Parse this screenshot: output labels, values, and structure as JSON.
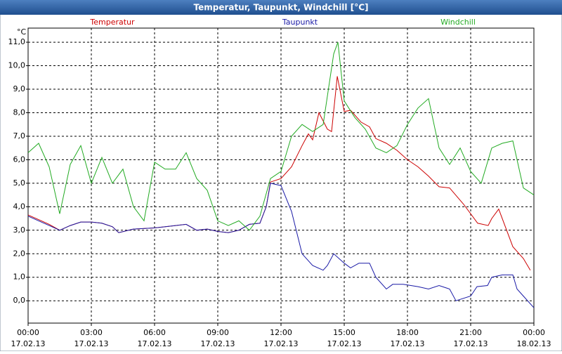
{
  "chart_data": {
    "type": "line",
    "title": "Temperatur, Taupunkt, Windchill [°C]",
    "y_label": "°C",
    "ylim": [
      -0.95,
      11.6
    ],
    "yticks": [
      {
        "value": 0,
        "label": "0,0"
      },
      {
        "value": 1,
        "label": "1,0"
      },
      {
        "value": 2,
        "label": "2,0"
      },
      {
        "value": 3,
        "label": "3,0"
      },
      {
        "value": 4,
        "label": "4,0"
      },
      {
        "value": 5,
        "label": "5,0"
      },
      {
        "value": 6,
        "label": "6,0"
      },
      {
        "value": 7,
        "label": "7,0"
      },
      {
        "value": 8,
        "label": "8,0"
      },
      {
        "value": 9,
        "label": "9,0"
      },
      {
        "value": 10,
        "label": "10,0"
      },
      {
        "value": 11,
        "label": "11,0"
      }
    ],
    "xlim": [
      0,
      24
    ],
    "xticks": [
      {
        "value": 0,
        "label": "00:00",
        "date": "17.02.13"
      },
      {
        "value": 3,
        "label": "03:00",
        "date": "17.02.13"
      },
      {
        "value": 6,
        "label": "06:00",
        "date": "17.02.13"
      },
      {
        "value": 9,
        "label": "09:00",
        "date": "17.02.13"
      },
      {
        "value": 12,
        "label": "12:00",
        "date": "17.02.13"
      },
      {
        "value": 15,
        "label": "15:00",
        "date": "17.02.13"
      },
      {
        "value": 18,
        "label": "18:00",
        "date": "17.02.13"
      },
      {
        "value": 21,
        "label": "21:00",
        "date": "17.02.13"
      },
      {
        "value": 24,
        "label": "00:00",
        "date": "18.02.13"
      }
    ],
    "grid": true,
    "series": [
      {
        "name": "Temperatur",
        "color": "#cc0000",
        "x": [
          0,
          0.5,
          1,
          1.5,
          2,
          2.5,
          3,
          3.5,
          4,
          4.3,
          5,
          6,
          7,
          7.5,
          8,
          8.5,
          9,
          9.5,
          10,
          10.5,
          11,
          11.3,
          11.5,
          12,
          12.5,
          13,
          13.3,
          13.5,
          13.8,
          14.2,
          14.4,
          14.67,
          15,
          15.3,
          15.8,
          16.2,
          16.5,
          17,
          17.5,
          18,
          18.5,
          19,
          19.5,
          20,
          20.67,
          21.33,
          21.83,
          22,
          22.33,
          23,
          23.5,
          23.83
        ],
        "values": [
          3.65,
          3.45,
          3.25,
          3.0,
          3.2,
          3.35,
          3.35,
          3.3,
          3.15,
          2.9,
          3.05,
          3.1,
          3.2,
          3.25,
          3.0,
          3.05,
          2.95,
          2.9,
          3.0,
          3.25,
          3.3,
          4.0,
          5.05,
          5.2,
          5.7,
          6.6,
          7.1,
          6.85,
          8.0,
          7.3,
          7.2,
          9.55,
          8.05,
          8.1,
          7.6,
          7.4,
          6.9,
          6.7,
          6.4,
          6.0,
          5.7,
          5.3,
          4.85,
          4.8,
          4.1,
          3.3,
          3.2,
          3.5,
          3.9,
          2.3,
          1.8,
          1.3
        ]
      },
      {
        "name": "Taupunkt",
        "color": "#1a1aa6",
        "x": [
          0,
          0.5,
          1,
          1.5,
          2,
          2.5,
          3,
          3.5,
          4,
          4.3,
          5,
          6,
          7,
          7.5,
          8,
          8.5,
          9,
          9.5,
          10,
          10.5,
          11,
          11.3,
          11.5,
          12,
          12.5,
          13,
          13.5,
          14,
          14.2,
          14.5,
          15,
          15.3,
          15.7,
          16.2,
          16.5,
          17,
          17.3,
          17.8,
          18.5,
          19,
          19.5,
          20,
          20.3,
          21,
          21.3,
          21.8,
          22,
          22.5,
          23,
          23.2,
          23.5,
          24
        ],
        "values": [
          3.6,
          3.4,
          3.2,
          3.0,
          3.2,
          3.35,
          3.35,
          3.3,
          3.15,
          2.9,
          3.05,
          3.1,
          3.2,
          3.25,
          3.0,
          3.05,
          2.95,
          2.9,
          3.0,
          3.25,
          3.3,
          4.0,
          5.0,
          4.9,
          3.8,
          2.0,
          1.5,
          1.3,
          1.5,
          2.0,
          1.6,
          1.4,
          1.6,
          1.6,
          1.0,
          0.5,
          0.7,
          0.7,
          0.6,
          0.5,
          0.65,
          0.5,
          0.0,
          0.2,
          0.6,
          0.65,
          1.0,
          1.1,
          1.1,
          0.5,
          0.2,
          -0.3
        ]
      },
      {
        "name": "Windchill",
        "color": "#22aa22",
        "x": [
          0,
          0.5,
          1,
          1.5,
          2,
          2.5,
          3,
          3.5,
          4,
          4.5,
          5,
          5.5,
          6,
          6.5,
          7,
          7.5,
          8,
          8.5,
          9,
          9.5,
          10,
          10.5,
          11,
          11.5,
          12,
          12.5,
          13,
          13.5,
          14,
          14.5,
          14.7,
          15,
          15.5,
          16,
          16.5,
          17,
          17.5,
          18,
          18.5,
          19,
          19.5,
          20,
          20.5,
          21,
          21.5,
          22,
          22.5,
          23,
          23.5,
          24
        ],
        "values": [
          6.3,
          6.7,
          5.7,
          3.7,
          5.8,
          6.6,
          5.0,
          6.1,
          5.0,
          5.6,
          4.0,
          3.4,
          5.9,
          5.6,
          5.6,
          6.3,
          5.2,
          4.7,
          3.4,
          3.2,
          3.4,
          3.0,
          3.6,
          5.2,
          5.5,
          7.0,
          7.5,
          7.2,
          7.5,
          10.5,
          11.0,
          8.5,
          7.8,
          7.3,
          6.5,
          6.3,
          6.6,
          7.5,
          8.2,
          8.6,
          6.5,
          5.8,
          6.5,
          5.5,
          5.0,
          6.5,
          6.7,
          6.8,
          4.8,
          4.5
        ]
      }
    ]
  }
}
